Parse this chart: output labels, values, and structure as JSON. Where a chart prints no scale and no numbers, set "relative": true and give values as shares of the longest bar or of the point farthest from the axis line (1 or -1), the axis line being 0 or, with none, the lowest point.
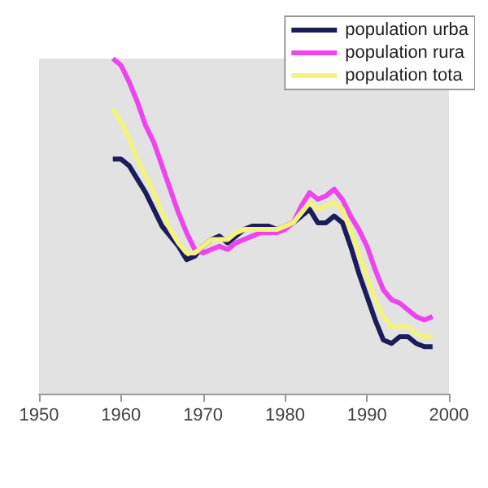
{
  "chart_data": {
    "type": "line",
    "relative": true,
    "x": [
      1959,
      1960,
      1961,
      1962,
      1963,
      1964,
      1965,
      1966,
      1967,
      1968,
      1969,
      1970,
      1971,
      1972,
      1973,
      1974,
      1975,
      1976,
      1977,
      1978,
      1979,
      1980,
      1981,
      1982,
      1983,
      1984,
      1985,
      1986,
      1987,
      1988,
      1989,
      1990,
      1991,
      1992,
      1993,
      1994,
      1995,
      1996,
      1997,
      1998
    ],
    "xlim": [
      1950,
      2000
    ],
    "xticks": [
      1950,
      1960,
      1970,
      1980,
      1990,
      2000
    ],
    "series": [
      {
        "name": "population urba",
        "color": "#1c1c5c",
        "values": [
          0.7,
          0.7,
          0.68,
          0.64,
          0.6,
          0.55,
          0.5,
          0.47,
          0.44,
          0.4,
          0.41,
          0.44,
          0.46,
          0.47,
          0.45,
          0.47,
          0.49,
          0.5,
          0.5,
          0.5,
          0.49,
          0.5,
          0.51,
          0.53,
          0.55,
          0.51,
          0.51,
          0.53,
          0.51,
          0.44,
          0.36,
          0.29,
          0.22,
          0.16,
          0.15,
          0.17,
          0.17,
          0.15,
          0.14,
          0.14
        ]
      },
      {
        "name": "population rura",
        "color": "#ee44ee",
        "values": [
          1.0,
          0.98,
          0.93,
          0.87,
          0.8,
          0.75,
          0.68,
          0.61,
          0.54,
          0.48,
          0.43,
          0.42,
          0.43,
          0.44,
          0.43,
          0.45,
          0.46,
          0.47,
          0.48,
          0.48,
          0.48,
          0.49,
          0.51,
          0.56,
          0.6,
          0.58,
          0.59,
          0.61,
          0.58,
          0.53,
          0.49,
          0.44,
          0.37,
          0.31,
          0.28,
          0.27,
          0.25,
          0.23,
          0.22,
          0.23
        ]
      },
      {
        "name": "population tota",
        "color": "#f2f280",
        "values": [
          0.85,
          0.81,
          0.76,
          0.7,
          0.65,
          0.6,
          0.54,
          0.49,
          0.45,
          0.42,
          0.42,
          0.44,
          0.46,
          0.46,
          0.46,
          0.48,
          0.49,
          0.49,
          0.49,
          0.49,
          0.49,
          0.5,
          0.51,
          0.54,
          0.57,
          0.55,
          0.56,
          0.57,
          0.55,
          0.49,
          0.42,
          0.35,
          0.28,
          0.23,
          0.2,
          0.2,
          0.2,
          0.18,
          0.17,
          0.17
        ]
      }
    ],
    "legend": "top right",
    "grid": false
  }
}
